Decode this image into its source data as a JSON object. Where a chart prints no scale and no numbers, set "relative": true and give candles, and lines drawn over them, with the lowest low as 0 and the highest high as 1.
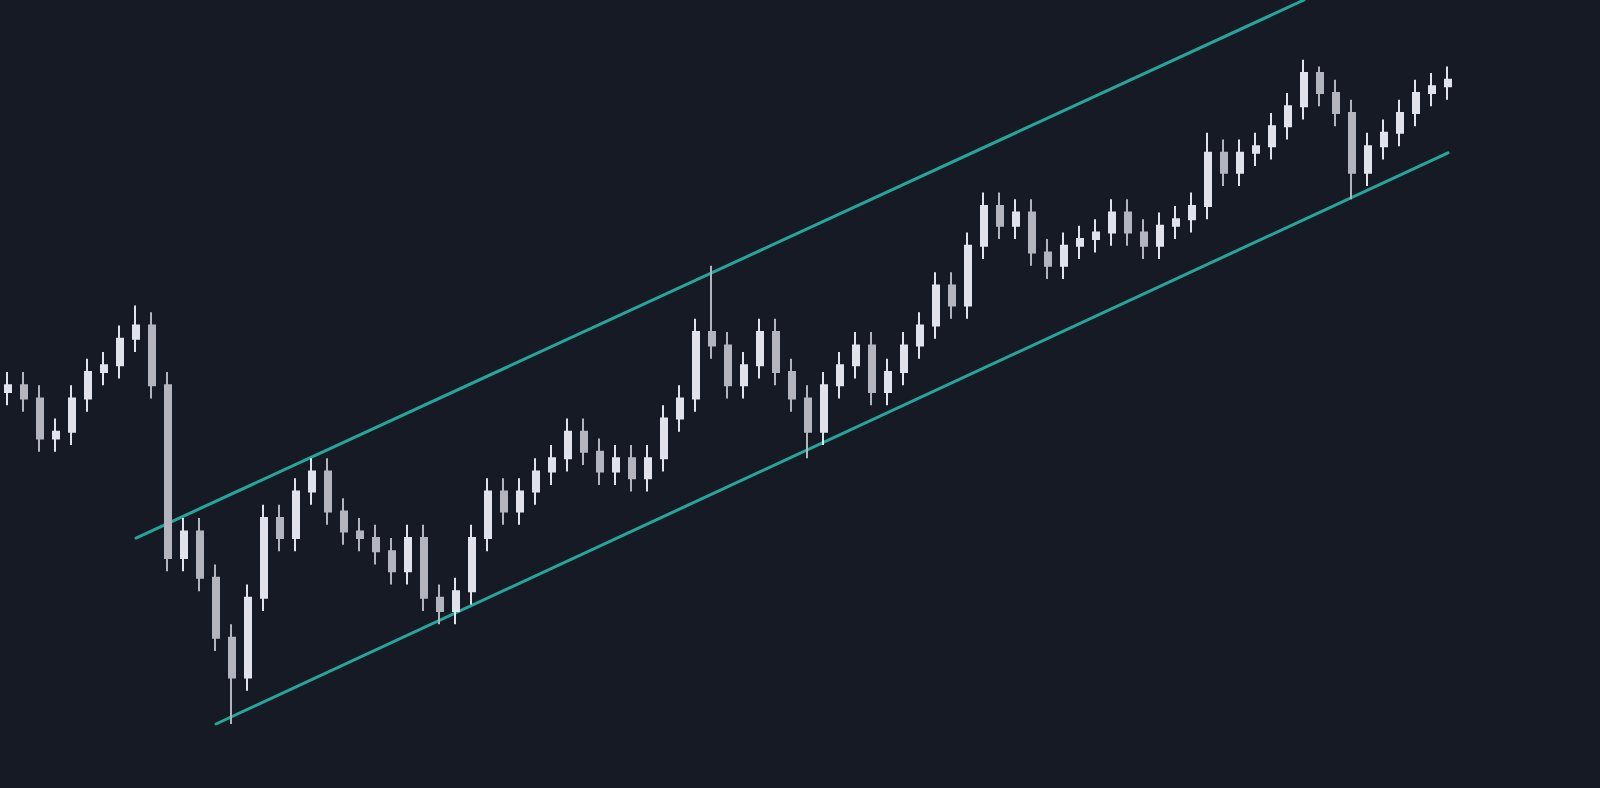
{
  "chart_data": {
    "type": "candlestick",
    "relative": true,
    "colors": [
      "#e0e3eb",
      "#b2b5be",
      "#b2b5be",
      "#e0e3eb",
      "#e0e3eb",
      "#e0e3eb",
      "#e0e3eb",
      "#e0e3eb",
      "#e0e3eb",
      "#b2b5be",
      "#b2b5be",
      "#e0e3eb",
      "#b2b5be",
      "#b2b5be",
      "#b2b5be",
      "#e0e3eb",
      "#e0e3eb",
      "#b2b5be",
      "#e0e3eb",
      "#e0e3eb",
      "#b2b5be",
      "#b2b5be",
      "#b2b5be",
      "#b2b5be",
      "#b2b5be",
      "#e0e3eb",
      "#b2b5be",
      "#b2b5be",
      "#e0e3eb",
      "#e0e3eb",
      "#e0e3eb",
      "#b2b5be",
      "#e0e3eb",
      "#e0e3eb",
      "#e0e3eb",
      "#e0e3eb",
      "#b2b5be",
      "#b2b5be",
      "#e0e3eb",
      "#b2b5be",
      "#e0e3eb",
      "#e0e3eb",
      "#e0e3eb",
      "#e0e3eb",
      "#b2b5be",
      "#b2b5be",
      "#e0e3eb",
      "#e0e3eb",
      "#b2b5be",
      "#b2b5be",
      "#b2b5be",
      "#e0e3eb",
      "#e0e3eb",
      "#e0e3eb",
      "#b2b5be",
      "#e0e3eb",
      "#e0e3eb",
      "#e0e3eb",
      "#e0e3eb",
      "#b2b5be",
      "#e0e3eb",
      "#e0e3eb",
      "#b2b5be",
      "#e0e3eb",
      "#b2b5be",
      "#b2b5be",
      "#e0e3eb",
      "#e0e3eb",
      "#e0e3eb",
      "#e0e3eb",
      "#b2b5be",
      "#b2b5be",
      "#e0e3eb",
      "#e0e3eb",
      "#e0e3eb",
      "#e0e3eb",
      "#b2b5be",
      "#e0e3eb",
      "#e0e3eb",
      "#e0e3eb",
      "#e0e3eb",
      "#e0e3eb",
      "#b2b5be",
      "#b2b5be",
      "#b2b5be",
      "#e0e3eb",
      "#e0e3eb",
      "#e0e3eb",
      "#e0e3eb",
      "#e0e3eb",
      "#e0e3eb"
    ],
    "categories": [
      null,
      null,
      null,
      null,
      null,
      null,
      null,
      null,
      null,
      null,
      null,
      null,
      null,
      null,
      null,
      null,
      null,
      null,
      null,
      null,
      null,
      null,
      null,
      null,
      null,
      null,
      null,
      null,
      null,
      null,
      null,
      null,
      null,
      null,
      null,
      null,
      null,
      null,
      null,
      null,
      null,
      null,
      null,
      null,
      null,
      null,
      null,
      null,
      null,
      null,
      null,
      null,
      null,
      null,
      null,
      null,
      null,
      null,
      null,
      null,
      null,
      null,
      null,
      null,
      null,
      null,
      null,
      null,
      null,
      null,
      null,
      null,
      null,
      null,
      null,
      null,
      null,
      null,
      null,
      null,
      null,
      null,
      null,
      null,
      null,
      null,
      null,
      null,
      null,
      null,
      null
    ],
    "ohlc": [
      [
        0.5,
        0.53,
        0.48,
        0.51
      ],
      [
        0.51,
        0.53,
        0.47,
        0.49
      ],
      [
        0.49,
        0.51,
        0.41,
        0.43
      ],
      [
        0.43,
        0.46,
        0.41,
        0.44
      ],
      [
        0.44,
        0.51,
        0.42,
        0.49
      ],
      [
        0.49,
        0.55,
        0.47,
        0.53
      ],
      [
        0.53,
        0.56,
        0.51,
        0.54
      ],
      [
        0.54,
        0.6,
        0.52,
        0.58
      ],
      [
        0.58,
        0.63,
        0.56,
        0.6
      ],
      [
        0.6,
        0.62,
        0.49,
        0.51
      ],
      [
        0.51,
        0.53,
        0.23,
        0.25
      ],
      [
        0.25,
        0.31,
        0.23,
        0.29
      ],
      [
        0.29,
        0.31,
        0.2,
        0.22
      ],
      [
        0.22,
        0.24,
        0.11,
        0.13
      ],
      [
        0.13,
        0.15,
        0,
        0.07
      ],
      [
        0.07,
        0.21,
        0.05,
        0.19
      ],
      [
        0.19,
        0.33,
        0.17,
        0.31
      ],
      [
        0.31,
        0.33,
        0.26,
        0.28
      ],
      [
        0.28,
        0.37,
        0.26,
        0.35
      ],
      [
        0.35,
        0.4,
        0.33,
        0.38
      ],
      [
        0.38,
        0.4,
        0.3,
        0.32
      ],
      [
        0.32,
        0.34,
        0.27,
        0.29
      ],
      [
        0.29,
        0.31,
        0.26,
        0.28
      ],
      [
        0.28,
        0.3,
        0.24,
        0.26
      ],
      [
        0.26,
        0.28,
        0.21,
        0.23
      ],
      [
        0.23,
        0.3,
        0.21,
        0.28
      ],
      [
        0.28,
        0.3,
        0.17,
        0.19
      ],
      [
        0.19,
        0.21,
        0.15,
        0.17
      ],
      [
        0.17,
        0.22,
        0.15,
        0.2
      ],
      [
        0.2,
        0.3,
        0.18,
        0.28
      ],
      [
        0.28,
        0.37,
        0.26,
        0.35
      ],
      [
        0.35,
        0.37,
        0.3,
        0.32
      ],
      [
        0.32,
        0.37,
        0.3,
        0.35
      ],
      [
        0.35,
        0.4,
        0.33,
        0.38
      ],
      [
        0.38,
        0.42,
        0.36,
        0.4
      ],
      [
        0.4,
        0.46,
        0.38,
        0.44
      ],
      [
        0.44,
        0.46,
        0.39,
        0.41
      ],
      [
        0.41,
        0.43,
        0.36,
        0.38
      ],
      [
        0.38,
        0.42,
        0.36,
        0.4
      ],
      [
        0.4,
        0.42,
        0.35,
        0.37
      ],
      [
        0.37,
        0.42,
        0.35,
        0.4
      ],
      [
        0.4,
        0.48,
        0.38,
        0.46
      ],
      [
        0.46,
        0.51,
        0.44,
        0.49
      ],
      [
        0.49,
        0.61,
        0.47,
        0.59
      ],
      [
        0.59,
        0.69,
        0.55,
        0.57
      ],
      [
        0.57,
        0.59,
        0.49,
        0.51
      ],
      [
        0.51,
        0.56,
        0.49,
        0.54
      ],
      [
        0.54,
        0.61,
        0.52,
        0.59
      ],
      [
        0.59,
        0.61,
        0.51,
        0.53
      ],
      [
        0.53,
        0.55,
        0.47,
        0.49
      ],
      [
        0.49,
        0.51,
        0.4,
        0.44
      ],
      [
        0.44,
        0.53,
        0.42,
        0.51
      ],
      [
        0.51,
        0.56,
        0.49,
        0.54
      ],
      [
        0.54,
        0.59,
        0.52,
        0.57
      ],
      [
        0.57,
        0.59,
        0.48,
        0.5
      ],
      [
        0.5,
        0.55,
        0.48,
        0.53
      ],
      [
        0.53,
        0.59,
        0.51,
        0.57
      ],
      [
        0.57,
        0.62,
        0.55,
        0.6
      ],
      [
        0.6,
        0.68,
        0.58,
        0.66
      ],
      [
        0.66,
        0.68,
        0.61,
        0.63
      ],
      [
        0.63,
        0.74,
        0.61,
        0.72
      ],
      [
        0.72,
        0.8,
        0.7,
        0.78
      ],
      [
        0.78,
        0.8,
        0.73,
        0.75
      ],
      [
        0.75,
        0.79,
        0.73,
        0.77
      ],
      [
        0.77,
        0.79,
        0.69,
        0.71
      ],
      [
        0.71,
        0.73,
        0.67,
        0.69
      ],
      [
        0.69,
        0.74,
        0.67,
        0.72
      ],
      [
        0.72,
        0.75,
        0.7,
        0.73
      ],
      [
        0.73,
        0.76,
        0.71,
        0.74
      ],
      [
        0.74,
        0.79,
        0.72,
        0.77
      ],
      [
        0.77,
        0.79,
        0.72,
        0.74
      ],
      [
        0.74,
        0.76,
        0.7,
        0.72
      ],
      [
        0.72,
        0.77,
        0.7,
        0.75
      ],
      [
        0.75,
        0.78,
        0.73,
        0.76
      ],
      [
        0.76,
        0.8,
        0.74,
        0.78
      ],
      [
        0.78,
        0.89,
        0.76,
        0.86
      ],
      [
        0.86,
        0.88,
        0.81,
        0.83
      ],
      [
        0.83,
        0.88,
        0.81,
        0.86
      ],
      [
        0.86,
        0.89,
        0.84,
        0.87
      ],
      [
        0.87,
        0.92,
        0.85,
        0.9
      ],
      [
        0.9,
        0.95,
        0.88,
        0.93
      ],
      [
        0.93,
        1,
        0.91,
        0.98
      ],
      [
        0.98,
        0.99,
        0.93,
        0.95
      ],
      [
        0.95,
        0.97,
        0.9,
        0.92
      ],
      [
        0.92,
        0.94,
        0.79,
        0.83
      ],
      [
        0.83,
        0.89,
        0.81,
        0.87
      ],
      [
        0.87,
        0.91,
        0.85,
        0.89
      ],
      [
        0.89,
        0.94,
        0.87,
        0.92
      ],
      [
        0.92,
        0.97,
        0.9,
        0.95
      ],
      [
        0.95,
        0.98,
        0.93,
        0.96
      ],
      [
        0.96,
        0.99,
        0.94,
        0.97
      ]
    ],
    "series": [
      {
        "type": "line",
        "color": "#26a69a",
        "values": [
          null,
          null,
          null,
          null,
          null,
          null,
          null,
          null,
          0.28,
          null,
          null,
          null,
          null,
          null,
          null,
          null,
          null,
          null,
          null,
          null,
          null,
          null,
          null,
          null,
          null,
          null,
          null,
          null,
          null,
          null,
          null,
          null,
          null,
          null,
          null,
          null,
          null,
          null,
          null,
          null,
          null,
          null,
          null,
          null,
          null,
          null,
          null,
          null,
          null,
          null,
          null,
          null,
          null,
          null,
          null,
          null,
          null,
          null,
          null,
          null,
          null,
          null,
          null,
          null,
          null,
          null,
          null,
          null,
          null,
          null,
          null,
          null,
          null,
          null,
          null,
          null,
          null,
          null,
          null,
          null,
          null,
          1.09,
          null,
          null,
          null,
          null,
          null,
          null,
          null,
          null,
          null
        ]
      },
      {
        "type": "line",
        "color": "#26a69a",
        "values": [
          null,
          null,
          null,
          null,
          null,
          null,
          null,
          null,
          null,
          null,
          null,
          null,
          null,
          0,
          null,
          null,
          null,
          null,
          null,
          null,
          null,
          null,
          null,
          null,
          null,
          null,
          null,
          null,
          null,
          null,
          null,
          null,
          null,
          null,
          null,
          null,
          null,
          null,
          null,
          null,
          null,
          null,
          null,
          null,
          null,
          null,
          null,
          null,
          null,
          null,
          null,
          null,
          null,
          null,
          null,
          null,
          null,
          null,
          null,
          null,
          null,
          null,
          null,
          null,
          null,
          null,
          null,
          null,
          null,
          null,
          null,
          null,
          null,
          null,
          null,
          null,
          null,
          null,
          null,
          null,
          null,
          null,
          null,
          null,
          null,
          null,
          null,
          null,
          null,
          null,
          0.86
        ]
      }
    ]
  }
}
